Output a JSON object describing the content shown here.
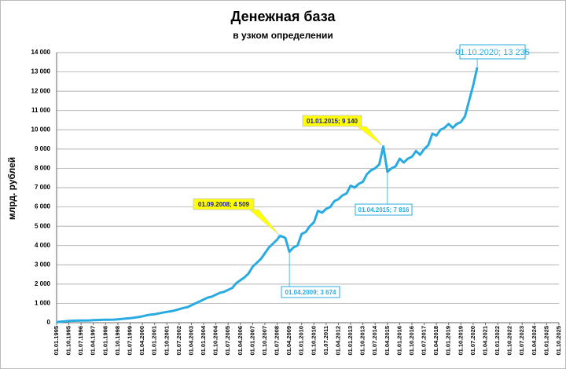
{
  "chart_data": {
    "type": "line",
    "title": "Денежная база",
    "subtitle": "в узком определении",
    "y_label": "млрд. рублей",
    "color": "#29abe2",
    "grid": true,
    "ylim": [
      0,
      14000
    ],
    "yticks": [
      0,
      {
        "value": 1000,
        "label": "1 000"
      },
      {
        "value": 2000,
        "label": "2 000"
      },
      {
        "value": 3000,
        "label": "3 000"
      },
      {
        "value": 4000,
        "label": "4 000"
      },
      {
        "value": 5000,
        "label": "5 000"
      },
      {
        "value": 6000,
        "label": "6 000"
      },
      {
        "value": 7000,
        "label": "7 000"
      },
      {
        "value": 8000,
        "label": "8 000"
      },
      {
        "value": 9000,
        "label": "9 000"
      },
      {
        "value": 10000,
        "label": "10 000"
      },
      {
        "value": 11000,
        "label": "11 000"
      },
      {
        "value": 12000,
        "label": "12 000"
      },
      {
        "value": 13000,
        "label": "13 000"
      },
      {
        "value": 14000,
        "label": "14 000"
      }
    ],
    "xlim": [
      "01.01.1995",
      "01.10.2025"
    ],
    "xticks": [
      "01.01.1995",
      "01.10.1995",
      "01.07.1996",
      "01.04.1997",
      "01.01.1998",
      "01.10.1998",
      "01.07.1999",
      "01.04.2000",
      "01.01.2001",
      "01.10.2001",
      "01.07.2002",
      "01.04.2003",
      "01.01.2004",
      "01.10.2004",
      "01.07.2005",
      "01.04.2006",
      "01.01.2007",
      "01.10.2007",
      "01.07.2008",
      "01.04.2009",
      "01.01.2010",
      "01.10.2010",
      "01.07.2011",
      "01.04.2012",
      "01.01.2013",
      "01.10.2013",
      "01.07.2014",
      "01.04.2015",
      "01.01.2016",
      "01.10.2016",
      "01.07.2017",
      "01.04.2018",
      "01.01.2019",
      "01.10.2019",
      "01.07.2020",
      "01.04.2021",
      "01.01.2022",
      "01.10.2022",
      "01.07.2023",
      "01.04.2024",
      "01.01.2025",
      "01.10.2025"
    ],
    "x": [
      "01.01.1995",
      "01.04.1995",
      "01.07.1995",
      "01.10.1995",
      "01.01.1996",
      "01.04.1996",
      "01.07.1996",
      "01.10.1996",
      "01.01.1997",
      "01.04.1997",
      "01.07.1997",
      "01.10.1997",
      "01.01.1998",
      "01.04.1998",
      "01.07.1998",
      "01.10.1998",
      "01.01.1999",
      "01.04.1999",
      "01.07.1999",
      "01.10.1999",
      "01.01.2000",
      "01.04.2000",
      "01.07.2000",
      "01.10.2000",
      "01.01.2001",
      "01.04.2001",
      "01.07.2001",
      "01.10.2001",
      "01.01.2002",
      "01.04.2002",
      "01.07.2002",
      "01.10.2002",
      "01.01.2003",
      "01.04.2003",
      "01.07.2003",
      "01.10.2003",
      "01.01.2004",
      "01.04.2004",
      "01.07.2004",
      "01.10.2004",
      "01.01.2005",
      "01.04.2005",
      "01.07.2005",
      "01.10.2005",
      "01.01.2006",
      "01.04.2006",
      "01.07.2006",
      "01.10.2006",
      "01.01.2007",
      "01.04.2007",
      "01.07.2007",
      "01.10.2007",
      "01.01.2008",
      "01.04.2008",
      "01.07.2008",
      "01.09.2008",
      "01.01.2009",
      "01.04.2009",
      "01.07.2009",
      "01.10.2009",
      "01.01.2010",
      "01.04.2010",
      "01.07.2010",
      "01.10.2010",
      "01.01.2011",
      "01.04.2011",
      "01.07.2011",
      "01.10.2011",
      "01.01.2012",
      "01.04.2012",
      "01.07.2012",
      "01.10.2012",
      "01.01.2013",
      "01.04.2013",
      "01.07.2013",
      "01.10.2013",
      "01.01.2014",
      "01.04.2014",
      "01.07.2014",
      "01.10.2014",
      "01.01.2015",
      "01.04.2015",
      "01.07.2015",
      "01.10.2015",
      "01.01.2016",
      "01.04.2016",
      "01.07.2016",
      "01.10.2016",
      "01.01.2017",
      "01.04.2017",
      "01.07.2017",
      "01.10.2017",
      "01.01.2018",
      "01.04.2018",
      "01.07.2018",
      "01.10.2018",
      "01.01.2019",
      "01.04.2019",
      "01.07.2019",
      "01.10.2019",
      "01.01.2020",
      "01.04.2020",
      "01.07.2020",
      "01.10.2020"
    ],
    "values": [
      30,
      50,
      70,
      90,
      100,
      105,
      110,
      115,
      120,
      130,
      140,
      145,
      150,
      155,
      160,
      170,
      190,
      210,
      230,
      260,
      290,
      330,
      380,
      420,
      440,
      480,
      520,
      560,
      590,
      640,
      700,
      760,
      800,
      900,
      1000,
      1100,
      1200,
      1300,
      1350,
      1450,
      1550,
      1600,
      1700,
      1800,
      2050,
      2200,
      2350,
      2550,
      2900,
      3100,
      3300,
      3600,
      3900,
      4100,
      4300,
      4509,
      4400,
      3674,
      3900,
      4000,
      4600,
      4700,
      5000,
      5200,
      5800,
      5700,
      5900,
      6000,
      6300,
      6400,
      6600,
      6700,
      7100,
      7000,
      7200,
      7300,
      7700,
      7900,
      8000,
      8200,
      9140,
      7816,
      8000,
      8100,
      8500,
      8300,
      8500,
      8600,
      8900,
      8700,
      9000,
      9200,
      9800,
      9700,
      10000,
      10100,
      10300,
      10100,
      10300,
      10400,
      10700,
      11500,
      12300,
      13235
    ],
    "annotations": [
      {
        "text": "01.10.2020; 13 235",
        "x": "01.10.2020"
      },
      {
        "text": "01.01.2015; 9 140",
        "x": "01.01.2015"
      },
      {
        "text": "01.09.2008; 4 509",
        "x": "01.09.2008"
      },
      {
        "text": "01.04.2015; 7 816",
        "x": "01.04.2015"
      },
      {
        "text": "01.04.2009; 3 674",
        "x": "01.04.2009"
      }
    ]
  }
}
